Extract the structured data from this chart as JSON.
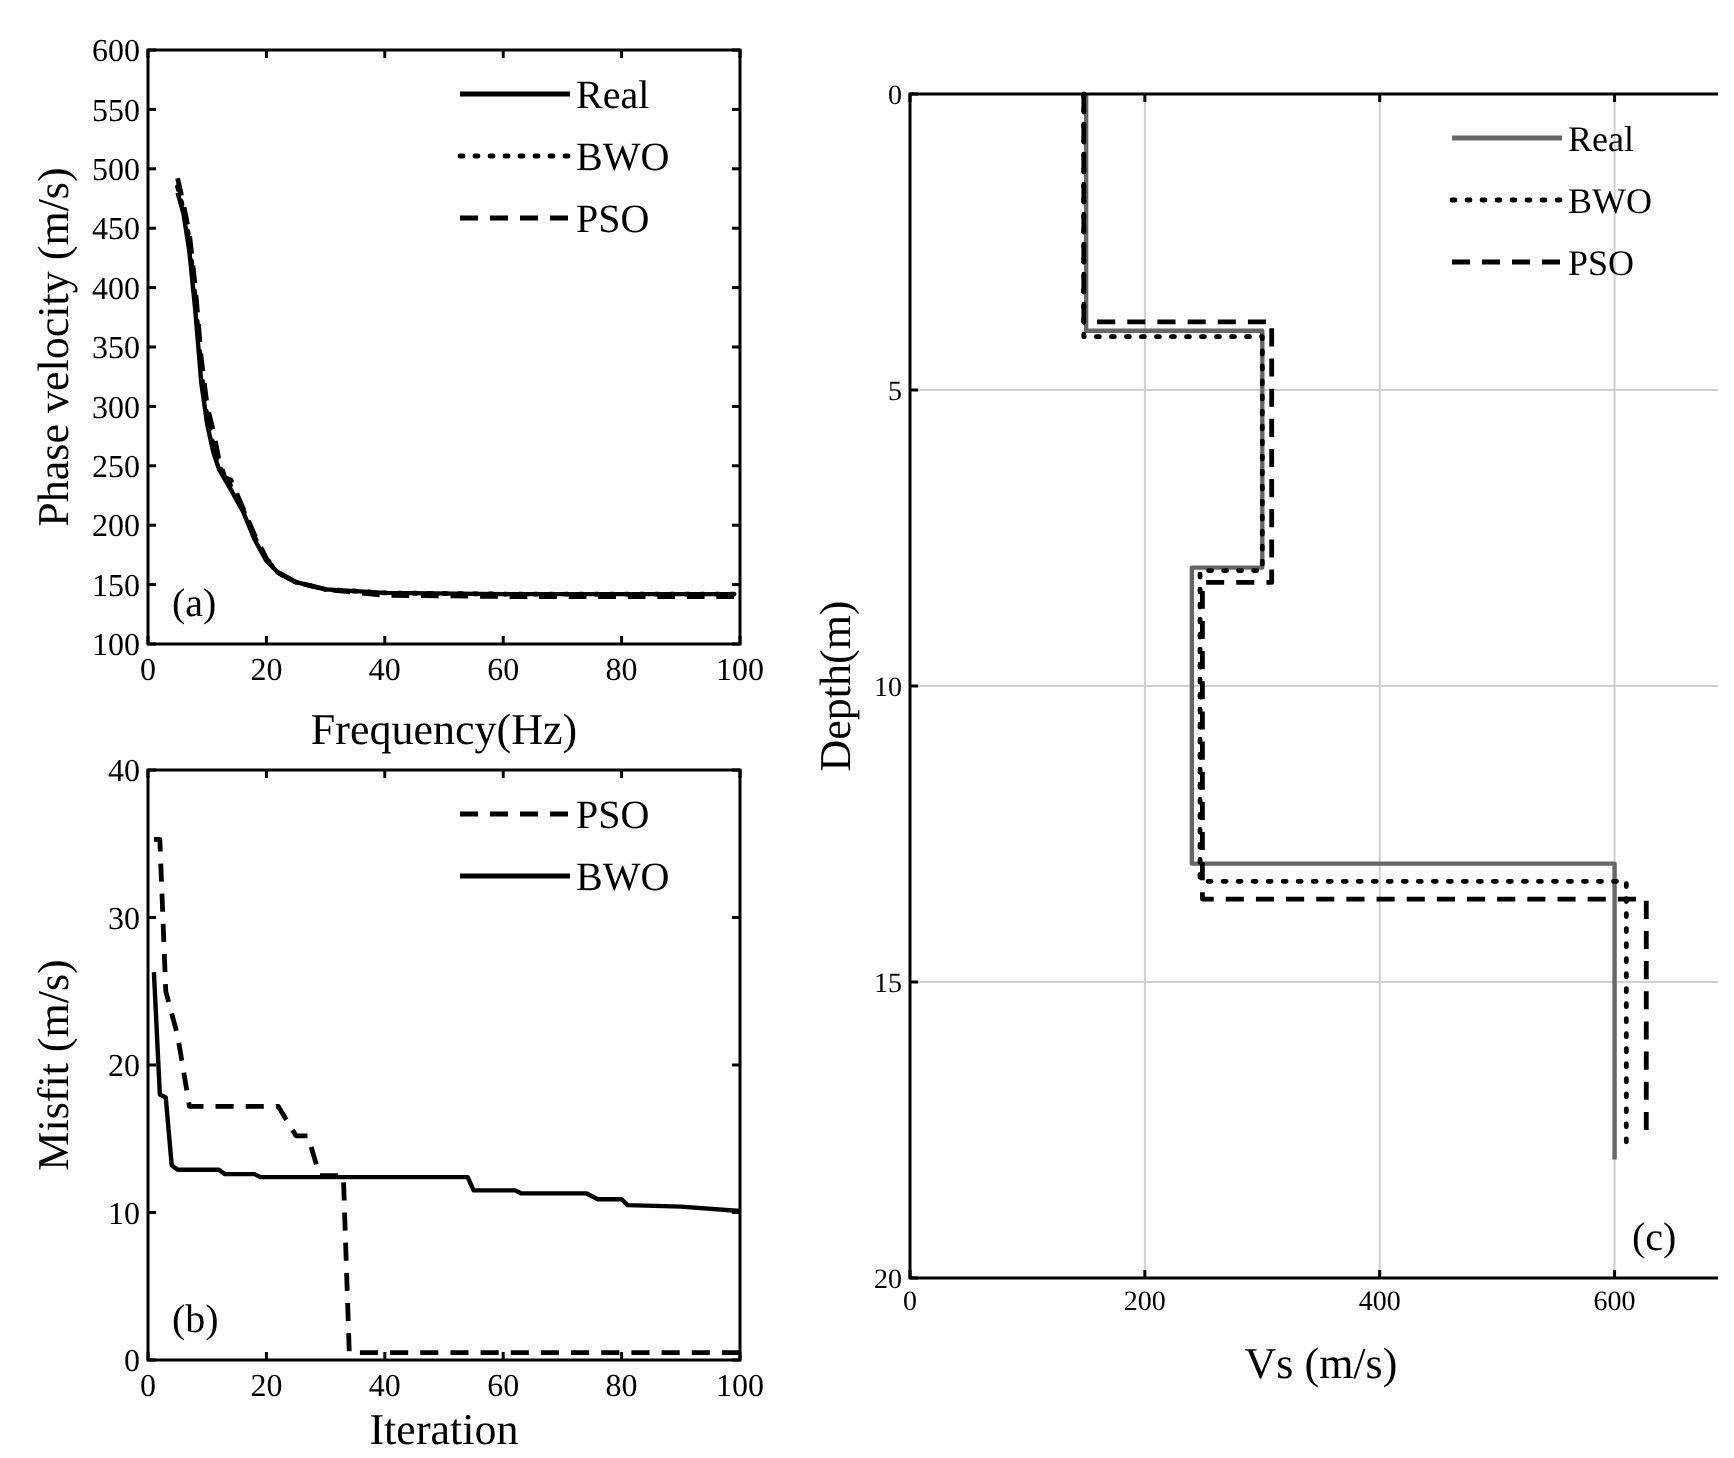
{
  "chart_data": [
    {
      "type": "line",
      "xlabel": "Frequency(Hz)",
      "ylabel": "Phase velocity (m/s)",
      "xlim": [
        0,
        100
      ],
      "ylim": [
        100,
        600
      ],
      "xticks": [
        0,
        20,
        40,
        60,
        80,
        100
      ],
      "yticks": [
        100,
        150,
        200,
        250,
        300,
        350,
        400,
        450,
        500,
        550,
        600
      ],
      "grid": false,
      "legend": "top right",
      "annotations": [
        "(a)"
      ],
      "series": [
        {
          "name": "Real",
          "color": "#000000",
          "line_style": "solid",
          "x": [
            5,
            6,
            7,
            8,
            9,
            10,
            11,
            12,
            14,
            16,
            18,
            20,
            22,
            25,
            30,
            40,
            60,
            80,
            99
          ],
          "values": [
            480,
            462,
            430,
            380,
            320,
            285,
            262,
            247,
            230,
            212,
            188,
            170,
            160,
            152,
            146,
            143,
            142,
            142,
            142
          ]
        },
        {
          "name": "BWO",
          "color": "#000000",
          "line_style": "dotted",
          "x": [
            5,
            6,
            7,
            8,
            9,
            10,
            11,
            12,
            14,
            16,
            18,
            20,
            22,
            25,
            30,
            40,
            60,
            80,
            99
          ],
          "values": [
            485,
            465,
            440,
            390,
            330,
            290,
            268,
            250,
            233,
            214,
            190,
            171,
            160,
            152,
            146,
            143,
            142,
            142,
            142
          ]
        },
        {
          "name": "PSO",
          "color": "#000000",
          "line_style": "dashed",
          "x": [
            5,
            6,
            7,
            8,
            9,
            10,
            11,
            12,
            13,
            14,
            16,
            18,
            20,
            22,
            25,
            30,
            40,
            60,
            80,
            99
          ],
          "values": [
            492,
            470,
            445,
            400,
            340,
            300,
            280,
            255,
            240,
            238,
            215,
            192,
            172,
            160,
            152,
            146,
            141,
            140,
            140,
            140
          ]
        }
      ]
    },
    {
      "type": "line",
      "xlabel": "Iteration",
      "ylabel": "Misfit (m/s)",
      "xlim": [
        0,
        100
      ],
      "ylim": [
        0,
        40
      ],
      "xticks": [
        0,
        20,
        40,
        60,
        80,
        100
      ],
      "yticks": [
        0,
        10,
        20,
        30,
        40
      ],
      "grid": false,
      "legend": "top right",
      "annotations": [
        "(b)"
      ],
      "series": [
        {
          "name": "PSO",
          "color": "#000000",
          "line_style": "dashed",
          "x": [
            1,
            2,
            3,
            5,
            7,
            22,
            25,
            27,
            29,
            33,
            34,
            100
          ],
          "values": [
            35.3,
            35.3,
            25,
            22,
            17.2,
            17.2,
            15.2,
            15.2,
            12.5,
            12.5,
            0.5,
            0.5
          ]
        },
        {
          "name": "BWO",
          "color": "#000000",
          "line_style": "solid",
          "x": [
            1,
            2,
            3,
            4,
            5,
            12,
            13,
            18,
            19,
            54,
            55,
            62,
            63,
            74,
            76,
            80,
            81,
            90,
            100
          ],
          "values": [
            26.3,
            18,
            17.8,
            13.2,
            12.9,
            12.9,
            12.6,
            12.6,
            12.4,
            12.4,
            11.5,
            11.5,
            11.3,
            11.3,
            10.9,
            10.9,
            10.5,
            10.4,
            10.1
          ]
        }
      ]
    },
    {
      "type": "line",
      "xlabel": "Vs (m/s)",
      "ylabel": "Depth(m)",
      "xlim": [
        0,
        700
      ],
      "ylim": [
        20,
        0
      ],
      "xticks": [
        0,
        200,
        400,
        600
      ],
      "yticks": [
        0,
        5,
        10,
        15,
        20
      ],
      "grid": true,
      "legend": "top right",
      "annotations": [
        "(c)"
      ],
      "series": [
        {
          "name": "Real",
          "color": "#666666",
          "line_style": "solid",
          "x": [
            150,
            150,
            300,
            300,
            240,
            240,
            600,
            600
          ],
          "values": [
            0,
            4,
            4,
            8,
            8,
            13,
            13,
            18
          ]
        },
        {
          "name": "BWO",
          "color": "#000000",
          "line_style": "dotted",
          "x": [
            148,
            148,
            300,
            300,
            247,
            247,
            610,
            610
          ],
          "values": [
            0,
            4.1,
            4.1,
            8.05,
            8.05,
            13.3,
            13.3,
            17.7
          ]
        },
        {
          "name": "PSO",
          "color": "#000000",
          "line_style": "dashed",
          "x": [
            148,
            148,
            308,
            308,
            249,
            249,
            627,
            627
          ],
          "values": [
            0,
            3.85,
            3.85,
            8.25,
            8.25,
            13.6,
            13.6,
            17.5
          ]
        }
      ]
    }
  ]
}
